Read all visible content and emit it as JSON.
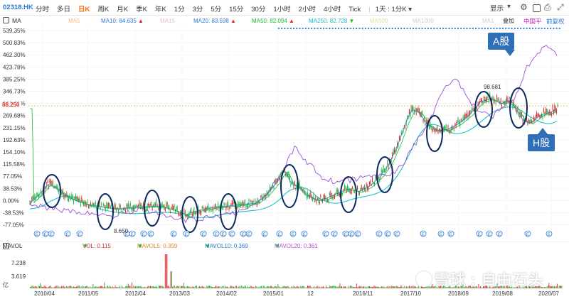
{
  "toolbar": {
    "ticker": "02318.HK",
    "periods": [
      {
        "label": "分时",
        "active": false
      },
      {
        "label": "多日",
        "active": false
      },
      {
        "label": "日K",
        "active": true
      },
      {
        "label": "周K",
        "active": false
      },
      {
        "label": "月K",
        "active": false
      },
      {
        "label": "季K",
        "active": false
      },
      {
        "label": "年K",
        "active": false
      },
      {
        "label": "1分",
        "active": false
      },
      {
        "label": "3分",
        "active": false
      },
      {
        "label": "5分",
        "active": false
      },
      {
        "label": "15分",
        "active": false
      },
      {
        "label": "30分",
        "active": false
      },
      {
        "label": "1小时",
        "active": false
      },
      {
        "label": "2小时",
        "active": false
      },
      {
        "label": "4小时",
        "active": false
      },
      {
        "label": "Tick",
        "active": false
      }
    ],
    "interval_dropdown": "1天 : 1分K",
    "display_label": "显示",
    "icons": [
      "gear-icon",
      "checkbox-icon",
      "camera-icon",
      "fullscreen-icon"
    ]
  },
  "ma_legend": {
    "indicator": "MA",
    "items": [
      {
        "label": "MA5",
        "value": "",
        "color": "#f4c08a"
      },
      {
        "label": "MA10: 84.635",
        "value": "▲",
        "color": "#2a78d6"
      },
      {
        "label": "MA15",
        "value": "",
        "color": "#f0b8d4"
      },
      {
        "label": "MA20: 83.598",
        "value": "▲",
        "color": "#2a78d6"
      },
      {
        "label": "MA50: 82.094",
        "value": "▲",
        "color": "#1cb83a"
      },
      {
        "label": "MA250: 82.728",
        "value": "▼",
        "color": "#1cb8c8"
      },
      {
        "label": "MA500",
        "value": "",
        "color": "#cfe7a6"
      },
      {
        "label": "MA1000",
        "value": "",
        "color": "#cfd0d0"
      },
      {
        "label": "MA1",
        "value": "",
        "color": "#cfd0d0"
      }
    ],
    "overlay_label": "叠加",
    "compare_label": "中国平",
    "adjust_label": "前复权"
  },
  "y_axis": {
    "ticks": [
      "539.35%",
      "500.83%",
      "462.30%",
      "423.78%",
      "385.25%",
      "346.73%",
      "308.20%",
      "269.68%",
      "231.15%",
      "192.63%",
      "154.10%",
      "115.58%",
      "77.05%",
      "38.53%",
      "0.00%",
      "-38.53%",
      "-77.05%"
    ],
    "current_price": "88.250"
  },
  "annotations": {
    "a_share": "A股",
    "h_share": "H股",
    "peak_value": "98.681",
    "low_value": "8.650"
  },
  "volume": {
    "indicator": "MAVOL",
    "vol": "VOL: 0.115",
    "vol_arrow": "▼",
    "mavol5": "MAVOL5: 0.359",
    "mavol5_arrow": "▼",
    "mavol10": "MAVOL10: 0.369",
    "mavol10_arrow": "▼",
    "mavol20": "MAVOL20: 0.361",
    "mavol20_arrow": "▼",
    "ticks": [
      "7.238",
      "3.619",
      "亿"
    ]
  },
  "x_axis": [
    "2010/04",
    "2011/05",
    "2012/04",
    "2013/03",
    "2014/02",
    "2015/01",
    "12",
    "2016/11",
    "2017/10",
    "2018/09",
    "2019/08",
    "2020/07"
  ],
  "watermark": "雪球 : 自由石头",
  "colors": {
    "accent": "#2a78d6",
    "active_period": "#ff6a00",
    "up": "#d92b2b",
    "down": "#1cb83a",
    "compare_line": "#9b4fd4"
  }
}
